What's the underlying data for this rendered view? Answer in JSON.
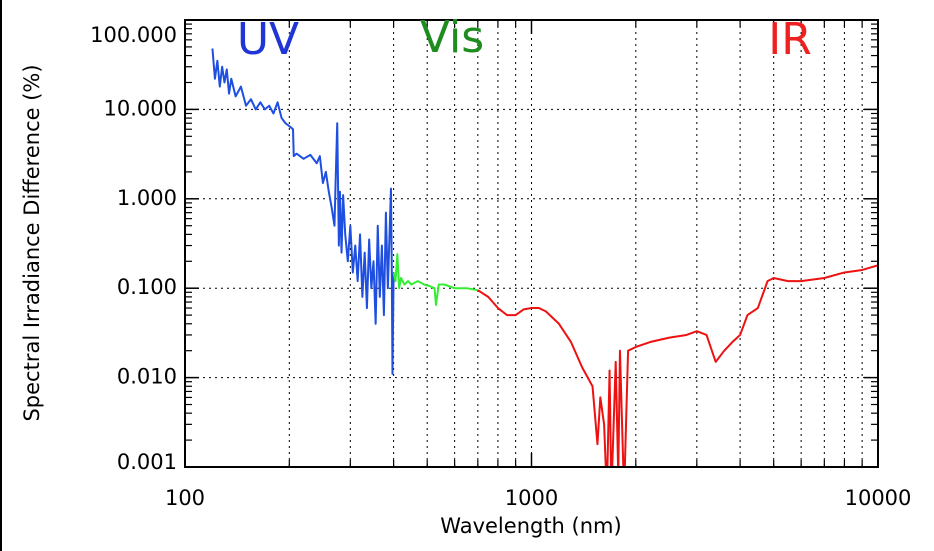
{
  "chart_data": {
    "type": "line",
    "x_label": "Wavelength (nm)",
    "y_label": "Spectral Irradiance Difference (%)",
    "xscale": "log",
    "yscale": "log",
    "grid": true,
    "xlim": [
      100,
      10000
    ],
    "xticks": [
      100,
      1000,
      10000
    ],
    "ylim": [
      0.001,
      100
    ],
    "yticks": [
      {
        "value": 0.001,
        "label": "0.001"
      },
      {
        "value": 0.01,
        "label": "0.010"
      },
      {
        "value": 0.1,
        "label": "0.100"
      },
      {
        "value": 1,
        "label": "1.000"
      },
      {
        "value": 10,
        "label": "10.000"
      },
      {
        "value": 100,
        "label": "100.000"
      }
    ],
    "annotations": [
      {
        "text": "UV",
        "color": "#1f35d6"
      },
      {
        "text": "Vis",
        "color": "#1e8c1e"
      },
      {
        "text": "IR",
        "color": "#ee2020"
      }
    ],
    "series": [
      {
        "color": "#1f4fe0",
        "x": [
          120,
          122,
          124,
          126,
          128,
          130,
          132,
          134,
          136,
          140,
          145,
          150,
          155,
          160,
          165,
          170,
          175,
          180,
          185,
          190,
          195,
          200,
          205,
          206,
          210,
          220,
          230,
          240,
          245,
          250,
          255,
          260,
          265,
          270,
          272,
          275,
          278,
          280,
          283,
          286,
          290,
          295,
          300,
          305,
          310,
          315,
          320,
          325,
          330,
          335,
          340,
          345,
          350,
          355,
          360,
          365,
          370,
          375,
          380,
          385,
          390,
          393,
          395,
          397,
          400
        ],
        "values": [
          48,
          22,
          35,
          18,
          30,
          20,
          28,
          15,
          22,
          14,
          18,
          11,
          13,
          10,
          12,
          10,
          11,
          9,
          12,
          8,
          7,
          6.5,
          6,
          3,
          3.2,
          2.8,
          3.1,
          2.5,
          3,
          1.5,
          2,
          1.2,
          0.8,
          0.5,
          1.5,
          7,
          0.3,
          1.2,
          0.25,
          1.1,
          0.4,
          0.2,
          0.5,
          0.15,
          0.3,
          0.12,
          0.4,
          0.08,
          0.25,
          0.06,
          0.35,
          0.1,
          0.2,
          0.04,
          0.5,
          0.08,
          0.3,
          0.05,
          0.7,
          0.1,
          0.5,
          1.3,
          0.2,
          0.011,
          0.15
        ]
      },
      {
        "color": "#33ee33",
        "x": [
          400,
          405,
          410,
          415,
          420,
          430,
          440,
          450,
          470,
          490,
          510,
          525,
          530,
          540,
          560,
          600,
          650,
          700
        ],
        "values": [
          0.15,
          0.12,
          0.24,
          0.1,
          0.13,
          0.11,
          0.12,
          0.11,
          0.12,
          0.11,
          0.105,
          0.1,
          0.065,
          0.11,
          0.11,
          0.1,
          0.1,
          0.095
        ]
      },
      {
        "color": "#ee1111",
        "x": [
          700,
          750,
          800,
          850,
          900,
          950,
          1000,
          1050,
          1100,
          1200,
          1300,
          1400,
          1500,
          1550,
          1580,
          1620,
          1650,
          1680,
          1700,
          1750,
          1780,
          1800,
          1850,
          1900,
          2000,
          2200,
          2500,
          2800,
          3000,
          3200,
          3400,
          3600,
          3800,
          4000,
          4200,
          4500,
          4800,
          5000,
          5500,
          6000,
          7000,
          8000,
          9000,
          10000
        ],
        "values": [
          0.095,
          0.08,
          0.06,
          0.05,
          0.05,
          0.058,
          0.06,
          0.06,
          0.055,
          0.04,
          0.025,
          0.013,
          0.008,
          0.0018,
          0.006,
          0.003,
          0.0005,
          0.012,
          0.0005,
          0.015,
          0.0008,
          0.02,
          0.0005,
          0.02,
          0.022,
          0.025,
          0.028,
          0.03,
          0.033,
          0.03,
          0.015,
          0.02,
          0.025,
          0.03,
          0.05,
          0.06,
          0.12,
          0.13,
          0.12,
          0.12,
          0.13,
          0.15,
          0.16,
          0.18
        ]
      }
    ]
  }
}
